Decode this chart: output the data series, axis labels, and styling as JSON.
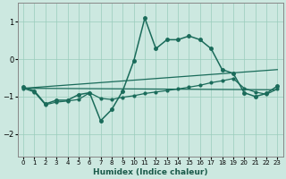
{
  "title": "",
  "xlabel": "Humidex (Indice chaleur)",
  "ylabel": "",
  "xlim": [
    -0.5,
    23.5
  ],
  "ylim": [
    -2.6,
    1.5
  ],
  "bg_color": "#cce8e0",
  "grid_color": "#99ccbb",
  "line_color": "#1a6b5a",
  "xticks": [
    0,
    1,
    2,
    3,
    4,
    5,
    6,
    7,
    8,
    9,
    10,
    11,
    12,
    13,
    14,
    15,
    16,
    17,
    18,
    19,
    20,
    21,
    22,
    23
  ],
  "yticks": [
    -2,
    -1,
    0,
    1
  ],
  "series1_x": [
    0,
    1,
    2,
    3,
    4,
    5,
    6,
    7,
    8,
    9,
    10,
    11,
    12,
    13,
    14,
    15,
    16,
    17,
    18,
    19,
    20,
    21,
    22,
    23
  ],
  "series1_y": [
    -0.75,
    -0.85,
    -1.2,
    -1.1,
    -1.1,
    -0.95,
    -0.9,
    -1.65,
    -1.35,
    -0.85,
    -0.05,
    1.1,
    0.28,
    0.52,
    0.52,
    0.62,
    0.52,
    0.28,
    -0.28,
    -0.38,
    -0.9,
    -1.0,
    -0.92,
    -0.72
  ],
  "series2_x": [
    0,
    1,
    2,
    3,
    4,
    5,
    6,
    7,
    8,
    9,
    10,
    11,
    12,
    13,
    14,
    15,
    16,
    17,
    18,
    19,
    20,
    21,
    22,
    23
  ],
  "series2_y": [
    -0.78,
    -0.88,
    -1.22,
    -1.15,
    -1.12,
    -1.08,
    -0.9,
    -1.05,
    -1.08,
    -1.02,
    -0.98,
    -0.92,
    -0.88,
    -0.84,
    -0.8,
    -0.75,
    -0.7,
    -0.63,
    -0.58,
    -0.52,
    -0.78,
    -0.88,
    -0.94,
    -0.8
  ],
  "line3_x": [
    0,
    23
  ],
  "line3_y": [
    -0.78,
    -0.82
  ],
  "line4_x": [
    0,
    23
  ],
  "line4_y": [
    -0.78,
    -0.28
  ]
}
